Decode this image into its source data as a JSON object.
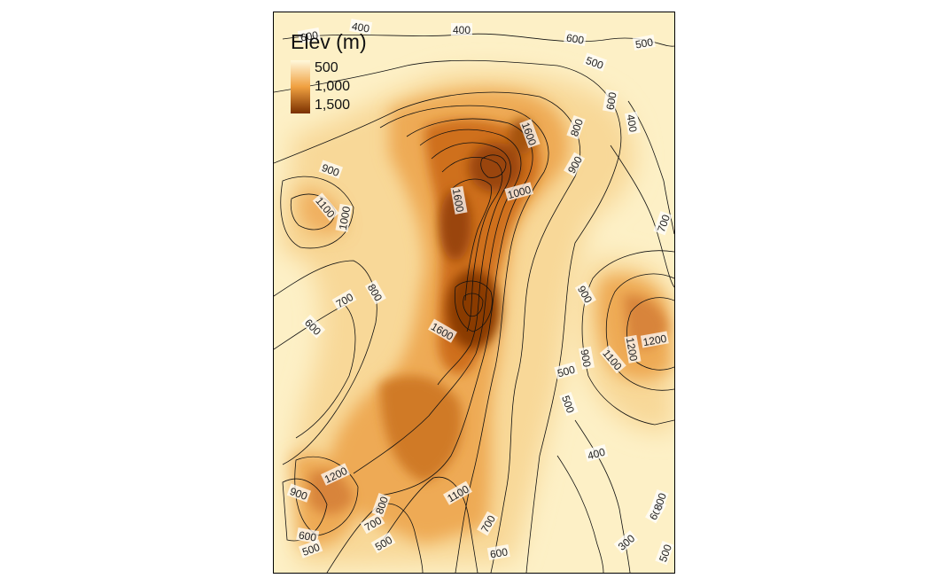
{
  "legend": {
    "title": "Elev (m)",
    "ticks": [
      {
        "value": 500,
        "label": "500"
      },
      {
        "value": 1000,
        "label": "1,000"
      },
      {
        "value": 1500,
        "label": "1,500"
      }
    ],
    "range": [
      300,
      1700
    ],
    "colors": {
      "low": "#fff8dc",
      "mid": "#f0a040",
      "high": "#7a3000"
    }
  },
  "contour_labels": [
    "600",
    "400",
    "400",
    "600",
    "500",
    "500",
    "600",
    "400",
    "800",
    "1600",
    "900",
    "900",
    "1100",
    "1000",
    "1600",
    "1000",
    "700",
    "800",
    "700",
    "600",
    "900",
    "1600",
    "1100",
    "1200",
    "1200",
    "500",
    "500",
    "900",
    "400",
    "1200",
    "900",
    "1100",
    "800",
    "700",
    "700",
    "600",
    "500",
    "600",
    "300",
    "500",
    "600",
    "500",
    "800"
  ]
}
